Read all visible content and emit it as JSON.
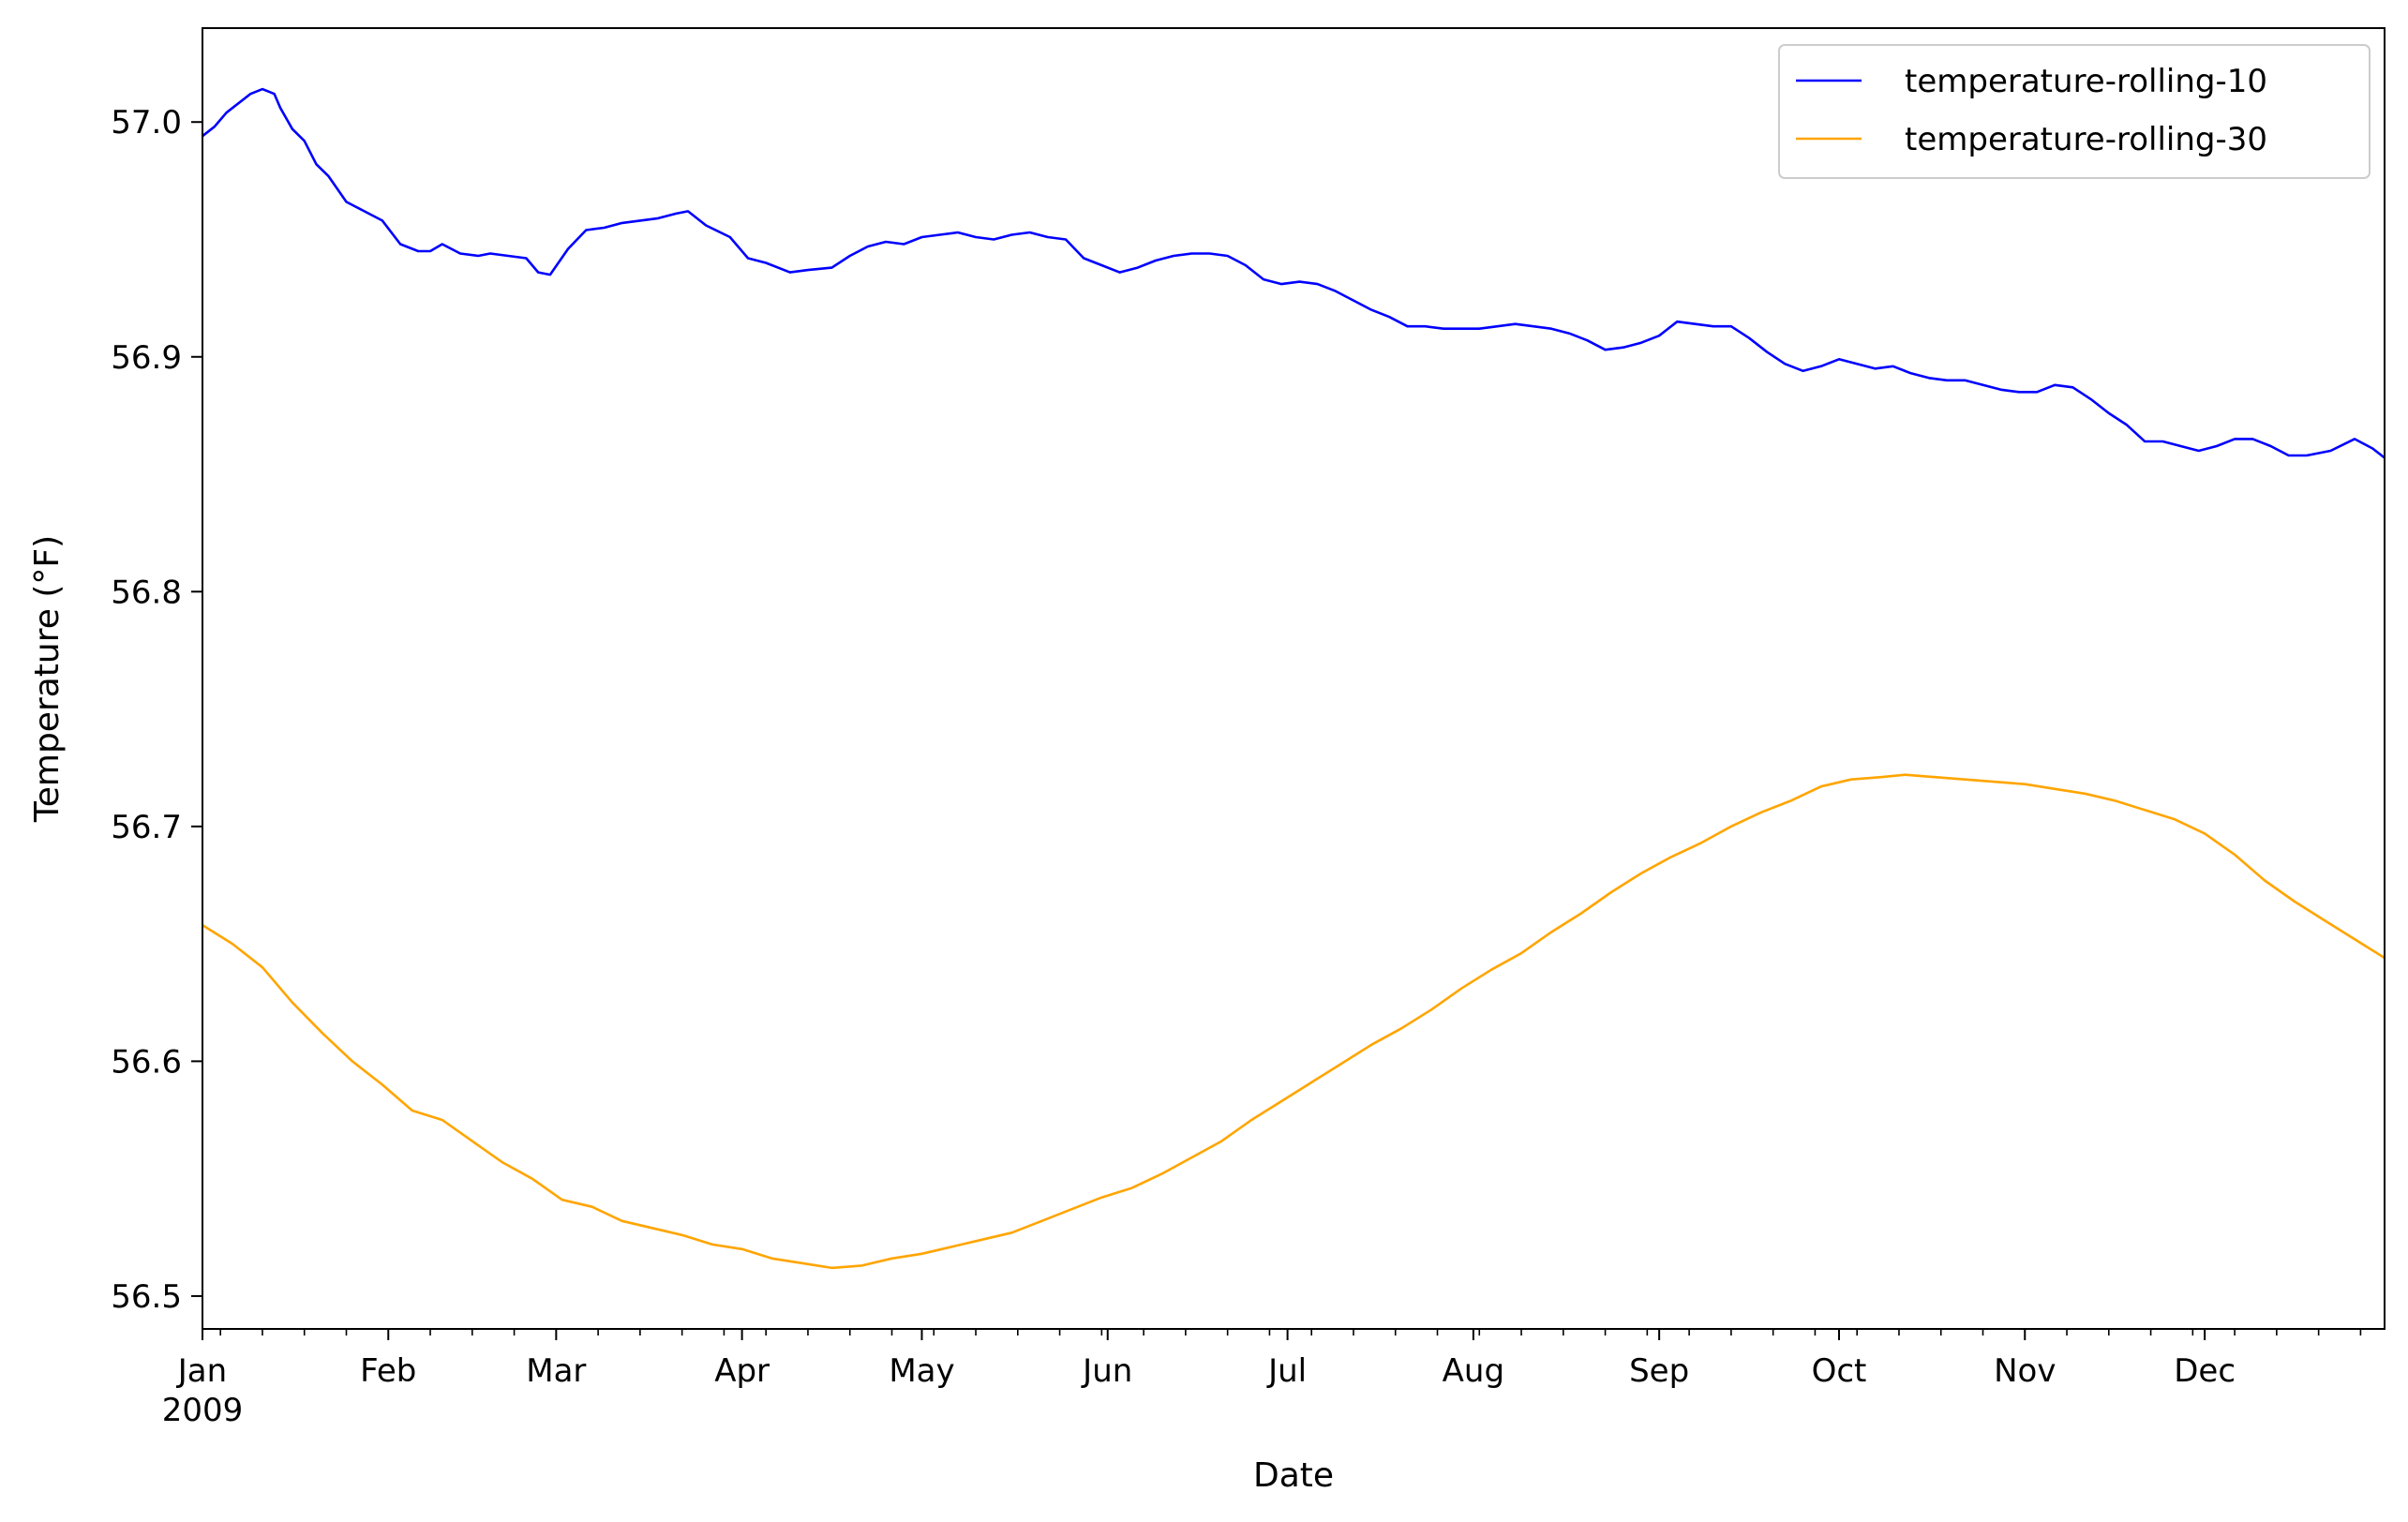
{
  "chart_data": {
    "type": "line",
    "title": "",
    "xlabel": "Date",
    "ylabel": "Temperature ($^\\circ$F)",
    "ylabel_display": "Temperature (°F)",
    "xlim": [
      "2009-01-01",
      "2009-12-31"
    ],
    "ylim": [
      56.486,
      57.04
    ],
    "y_ticks": [
      56.5,
      56.6,
      56.7,
      56.8,
      56.9,
      57.0
    ],
    "y_tick_labels": [
      "56.5",
      "56.6",
      "56.7",
      "56.8",
      "56.9",
      "57.0"
    ],
    "x_ticks": [
      {
        "date": "2009-01-01",
        "label": "Jan",
        "sublabel": "2009"
      },
      {
        "date": "2009-02-01",
        "label": "Feb"
      },
      {
        "date": "2009-03-01",
        "label": "Mar"
      },
      {
        "date": "2009-04-01",
        "label": "Apr"
      },
      {
        "date": "2009-05-01",
        "label": "May"
      },
      {
        "date": "2009-06-01",
        "label": "Jun"
      },
      {
        "date": "2009-07-01",
        "label": "Jul"
      },
      {
        "date": "2009-08-01",
        "label": "Aug"
      },
      {
        "date": "2009-09-01",
        "label": "Sep"
      },
      {
        "date": "2009-10-01",
        "label": "Oct"
      },
      {
        "date": "2009-11-01",
        "label": "Nov"
      },
      {
        "date": "2009-12-01",
        "label": "Dec"
      }
    ],
    "grid": false,
    "legend_position": "top-right",
    "series": [
      {
        "name": "temperature-rolling-10",
        "color": "#0000ff",
        "points": [
          [
            "2009-01-01",
            56.994
          ],
          [
            "2009-01-03",
            56.998
          ],
          [
            "2009-01-05",
            57.004
          ],
          [
            "2009-01-07",
            57.008
          ],
          [
            "2009-01-09",
            57.012
          ],
          [
            "2009-01-11",
            57.014
          ],
          [
            "2009-01-13",
            57.012
          ],
          [
            "2009-01-14",
            57.006
          ],
          [
            "2009-01-16",
            56.997
          ],
          [
            "2009-01-18",
            56.992
          ],
          [
            "2009-01-20",
            56.982
          ],
          [
            "2009-01-22",
            56.977
          ],
          [
            "2009-01-25",
            56.966
          ],
          [
            "2009-01-28",
            56.962
          ],
          [
            "2009-01-31",
            56.958
          ],
          [
            "2009-02-03",
            56.948
          ],
          [
            "2009-02-06",
            56.945
          ],
          [
            "2009-02-08",
            56.945
          ],
          [
            "2009-02-10",
            56.948
          ],
          [
            "2009-02-13",
            56.944
          ],
          [
            "2009-02-16",
            56.943
          ],
          [
            "2009-02-18",
            56.944
          ],
          [
            "2009-02-21",
            56.943
          ],
          [
            "2009-02-24",
            56.942
          ],
          [
            "2009-02-26",
            56.936
          ],
          [
            "2009-02-28",
            56.935
          ],
          [
            "2009-03-03",
            56.946
          ],
          [
            "2009-03-06",
            56.954
          ],
          [
            "2009-03-09",
            56.955
          ],
          [
            "2009-03-12",
            56.957
          ],
          [
            "2009-03-15",
            56.958
          ],
          [
            "2009-03-18",
            56.959
          ],
          [
            "2009-03-21",
            56.961
          ],
          [
            "2009-03-23",
            56.962
          ],
          [
            "2009-03-26",
            56.956
          ],
          [
            "2009-03-30",
            56.951
          ],
          [
            "2009-04-02",
            56.942
          ],
          [
            "2009-04-05",
            56.94
          ],
          [
            "2009-04-09",
            56.936
          ],
          [
            "2009-04-12",
            56.937
          ],
          [
            "2009-04-16",
            56.938
          ],
          [
            "2009-04-19",
            56.943
          ],
          [
            "2009-04-22",
            56.947
          ],
          [
            "2009-04-25",
            56.949
          ],
          [
            "2009-04-28",
            56.948
          ],
          [
            "2009-05-01",
            56.951
          ],
          [
            "2009-05-04",
            56.952
          ],
          [
            "2009-05-07",
            56.953
          ],
          [
            "2009-05-10",
            56.951
          ],
          [
            "2009-05-13",
            56.95
          ],
          [
            "2009-05-16",
            56.952
          ],
          [
            "2009-05-19",
            56.953
          ],
          [
            "2009-05-22",
            56.951
          ],
          [
            "2009-05-25",
            56.95
          ],
          [
            "2009-05-28",
            56.942
          ],
          [
            "2009-05-31",
            56.939
          ],
          [
            "2009-06-03",
            56.936
          ],
          [
            "2009-06-06",
            56.938
          ],
          [
            "2009-06-09",
            56.941
          ],
          [
            "2009-06-12",
            56.943
          ],
          [
            "2009-06-15",
            56.944
          ],
          [
            "2009-06-18",
            56.944
          ],
          [
            "2009-06-21",
            56.943
          ],
          [
            "2009-06-24",
            56.939
          ],
          [
            "2009-06-27",
            56.933
          ],
          [
            "2009-06-30",
            56.931
          ],
          [
            "2009-07-03",
            56.932
          ],
          [
            "2009-07-06",
            56.931
          ],
          [
            "2009-07-09",
            56.928
          ],
          [
            "2009-07-12",
            56.924
          ],
          [
            "2009-07-15",
            56.92
          ],
          [
            "2009-07-18",
            56.917
          ],
          [
            "2009-07-21",
            56.913
          ],
          [
            "2009-07-24",
            56.913
          ],
          [
            "2009-07-27",
            56.912
          ],
          [
            "2009-07-30",
            56.912
          ],
          [
            "2009-08-02",
            56.912
          ],
          [
            "2009-08-05",
            56.913
          ],
          [
            "2009-08-08",
            56.914
          ],
          [
            "2009-08-11",
            56.913
          ],
          [
            "2009-08-14",
            56.912
          ],
          [
            "2009-08-17",
            56.91
          ],
          [
            "2009-08-20",
            56.907
          ],
          [
            "2009-08-23",
            56.903
          ],
          [
            "2009-08-26",
            56.904
          ],
          [
            "2009-08-29",
            56.906
          ],
          [
            "2009-09-01",
            56.909
          ],
          [
            "2009-09-04",
            56.915
          ],
          [
            "2009-09-07",
            56.914
          ],
          [
            "2009-09-10",
            56.913
          ],
          [
            "2009-09-13",
            56.913
          ],
          [
            "2009-09-16",
            56.908
          ],
          [
            "2009-09-19",
            56.902
          ],
          [
            "2009-09-22",
            56.897
          ],
          [
            "2009-09-25",
            56.894
          ],
          [
            "2009-09-28",
            56.896
          ],
          [
            "2009-10-01",
            56.899
          ],
          [
            "2009-10-04",
            56.897
          ],
          [
            "2009-10-07",
            56.895
          ],
          [
            "2009-10-10",
            56.896
          ],
          [
            "2009-10-13",
            56.893
          ],
          [
            "2009-10-16",
            56.891
          ],
          [
            "2009-10-19",
            56.89
          ],
          [
            "2009-10-22",
            56.89
          ],
          [
            "2009-10-25",
            56.888
          ],
          [
            "2009-10-28",
            56.886
          ],
          [
            "2009-10-31",
            56.885
          ],
          [
            "2009-11-03",
            56.885
          ],
          [
            "2009-11-06",
            56.888
          ],
          [
            "2009-11-09",
            56.887
          ],
          [
            "2009-11-12",
            56.882
          ],
          [
            "2009-11-15",
            56.876
          ],
          [
            "2009-11-18",
            56.871
          ],
          [
            "2009-11-21",
            56.864
          ],
          [
            "2009-11-24",
            56.864
          ],
          [
            "2009-11-27",
            56.862
          ],
          [
            "2009-11-30",
            56.86
          ],
          [
            "2009-12-03",
            56.862
          ],
          [
            "2009-12-06",
            56.865
          ],
          [
            "2009-12-09",
            56.865
          ],
          [
            "2009-12-12",
            56.862
          ],
          [
            "2009-12-15",
            56.858
          ],
          [
            "2009-12-18",
            56.858
          ],
          [
            "2009-12-22",
            56.86
          ],
          [
            "2009-12-26",
            56.865
          ],
          [
            "2009-12-29",
            56.861
          ],
          [
            "2009-12-31",
            56.857
          ]
        ]
      },
      {
        "name": "temperature-rolling-30",
        "color": "#ffa500",
        "points": [
          [
            "2009-01-01",
            56.658
          ],
          [
            "2009-01-06",
            56.65
          ],
          [
            "2009-01-11",
            56.64
          ],
          [
            "2009-01-16",
            56.625
          ],
          [
            "2009-01-21",
            56.612
          ],
          [
            "2009-01-26",
            56.6
          ],
          [
            "2009-01-31",
            56.59
          ],
          [
            "2009-02-05",
            56.579
          ],
          [
            "2009-02-10",
            56.575
          ],
          [
            "2009-02-15",
            56.566
          ],
          [
            "2009-02-20",
            56.557
          ],
          [
            "2009-02-25",
            56.55
          ],
          [
            "2009-03-02",
            56.541
          ],
          [
            "2009-03-07",
            56.538
          ],
          [
            "2009-03-12",
            56.532
          ],
          [
            "2009-03-17",
            56.529
          ],
          [
            "2009-03-22",
            56.526
          ],
          [
            "2009-03-27",
            56.522
          ],
          [
            "2009-04-01",
            56.52
          ],
          [
            "2009-04-06",
            56.516
          ],
          [
            "2009-04-11",
            56.514
          ],
          [
            "2009-04-16",
            56.512
          ],
          [
            "2009-04-21",
            56.513
          ],
          [
            "2009-04-26",
            56.516
          ],
          [
            "2009-05-01",
            56.518
          ],
          [
            "2009-05-06",
            56.521
          ],
          [
            "2009-05-11",
            56.524
          ],
          [
            "2009-05-16",
            56.527
          ],
          [
            "2009-05-21",
            56.532
          ],
          [
            "2009-05-26",
            56.537
          ],
          [
            "2009-05-31",
            56.542
          ],
          [
            "2009-06-05",
            56.546
          ],
          [
            "2009-06-10",
            56.552
          ],
          [
            "2009-06-15",
            56.559
          ],
          [
            "2009-06-20",
            56.566
          ],
          [
            "2009-06-25",
            56.575
          ],
          [
            "2009-06-30",
            56.583
          ],
          [
            "2009-07-05",
            56.591
          ],
          [
            "2009-07-10",
            56.599
          ],
          [
            "2009-07-15",
            56.607
          ],
          [
            "2009-07-20",
            56.614
          ],
          [
            "2009-07-25",
            56.622
          ],
          [
            "2009-07-30",
            56.631
          ],
          [
            "2009-08-04",
            56.639
          ],
          [
            "2009-08-09",
            56.646
          ],
          [
            "2009-08-14",
            56.655
          ],
          [
            "2009-08-19",
            56.663
          ],
          [
            "2009-08-24",
            56.672
          ],
          [
            "2009-08-29",
            56.68
          ],
          [
            "2009-09-03",
            56.687
          ],
          [
            "2009-09-08",
            56.693
          ],
          [
            "2009-09-13",
            56.7
          ],
          [
            "2009-09-18",
            56.706
          ],
          [
            "2009-09-23",
            56.711
          ],
          [
            "2009-09-28",
            56.717
          ],
          [
            "2009-10-03",
            56.72
          ],
          [
            "2009-10-08",
            56.721
          ],
          [
            "2009-10-12",
            56.722
          ],
          [
            "2009-10-17",
            56.721
          ],
          [
            "2009-10-22",
            56.72
          ],
          [
            "2009-10-27",
            56.719
          ],
          [
            "2009-11-01",
            56.718
          ],
          [
            "2009-11-06",
            56.716
          ],
          [
            "2009-11-11",
            56.714
          ],
          [
            "2009-11-16",
            56.711
          ],
          [
            "2009-11-21",
            56.707
          ],
          [
            "2009-11-26",
            56.703
          ],
          [
            "2009-12-01",
            56.697
          ],
          [
            "2009-12-06",
            56.688
          ],
          [
            "2009-12-11",
            56.677
          ],
          [
            "2009-12-16",
            56.668
          ],
          [
            "2009-12-21",
            56.66
          ],
          [
            "2009-12-26",
            56.652
          ],
          [
            "2009-12-31",
            56.644
          ]
        ]
      }
    ]
  }
}
